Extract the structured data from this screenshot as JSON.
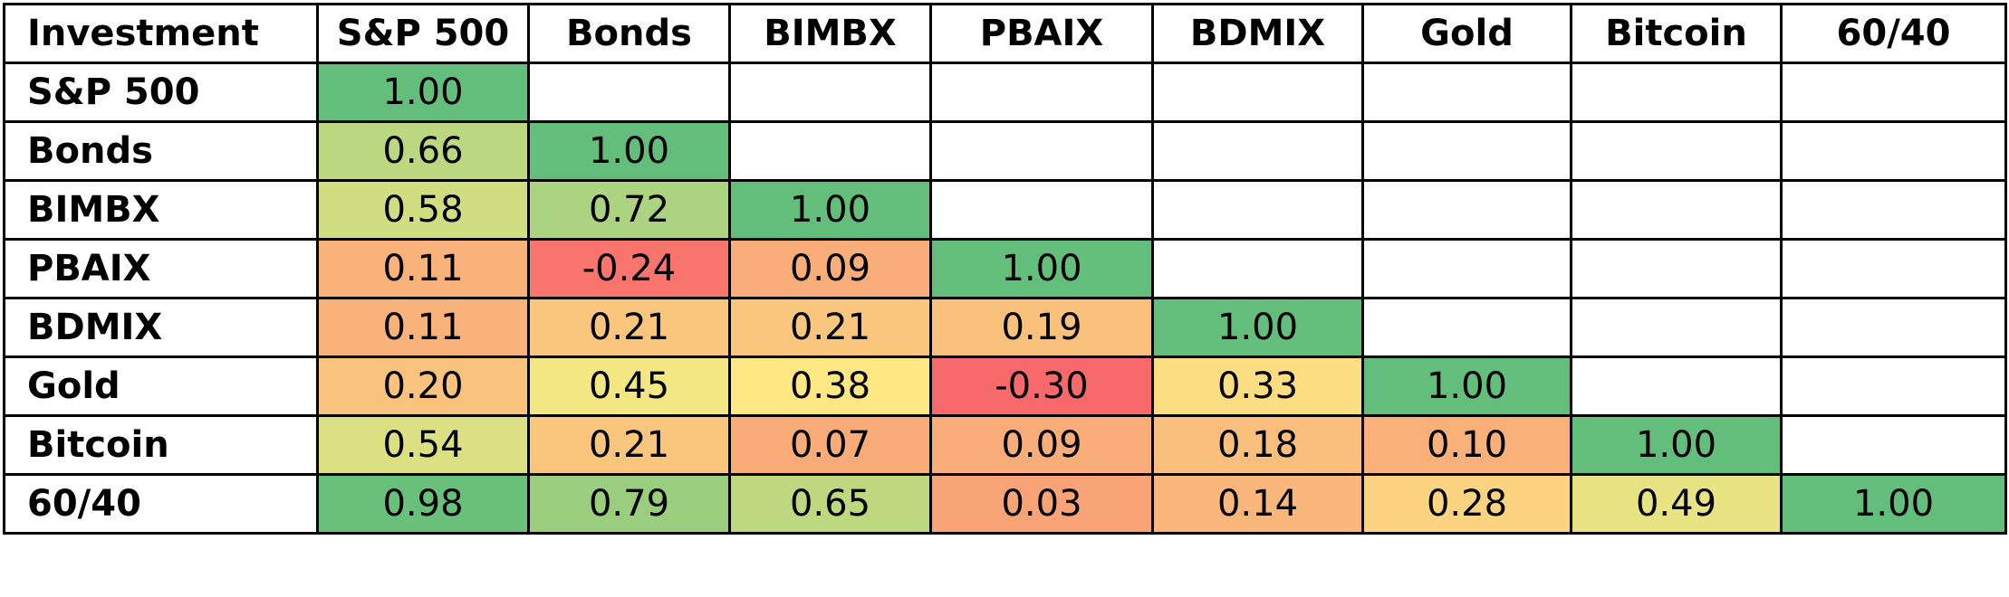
{
  "chart_data": {
    "type": "heatmap",
    "corner_label": "Investment",
    "columns": [
      "S&P 500",
      "Bonds",
      "BIMBX",
      "PBAIX",
      "BDMIX",
      "Gold",
      "Bitcoin",
      "60/40"
    ],
    "rows": [
      {
        "label": "S&P 500",
        "values": [
          "1.00",
          null,
          null,
          null,
          null,
          null,
          null,
          null
        ]
      },
      {
        "label": "Bonds",
        "values": [
          "0.66",
          "1.00",
          null,
          null,
          null,
          null,
          null,
          null
        ]
      },
      {
        "label": "BIMBX",
        "values": [
          "0.58",
          "0.72",
          "1.00",
          null,
          null,
          null,
          null,
          null
        ]
      },
      {
        "label": "PBAIX",
        "values": [
          "0.11",
          "-0.24",
          "0.09",
          "1.00",
          null,
          null,
          null,
          null
        ]
      },
      {
        "label": "BDMIX",
        "values": [
          "0.11",
          "0.21",
          "0.21",
          "0.19",
          "1.00",
          null,
          null,
          null
        ]
      },
      {
        "label": "Gold",
        "values": [
          "0.20",
          "0.45",
          "0.38",
          "-0.30",
          "0.33",
          "1.00",
          null,
          null
        ]
      },
      {
        "label": "Bitcoin",
        "values": [
          "0.54",
          "0.21",
          "0.07",
          "0.09",
          "0.18",
          "0.10",
          "1.00",
          null
        ]
      },
      {
        "label": "60/40",
        "values": [
          "0.98",
          "0.79",
          "0.65",
          "0.03",
          "0.14",
          "0.28",
          "0.49",
          "1.00"
        ]
      }
    ],
    "color_scale": {
      "min": -0.3,
      "max": 1.0,
      "stops": [
        {
          "value": -0.3,
          "color": "#f8696b"
        },
        {
          "value": 0.15,
          "color": "#f9b97b"
        },
        {
          "value": 0.4,
          "color": "#ffeb84"
        },
        {
          "value": 1.0,
          "color": "#63be7b"
        }
      ],
      "empty_color": "#ffffff"
    }
  }
}
